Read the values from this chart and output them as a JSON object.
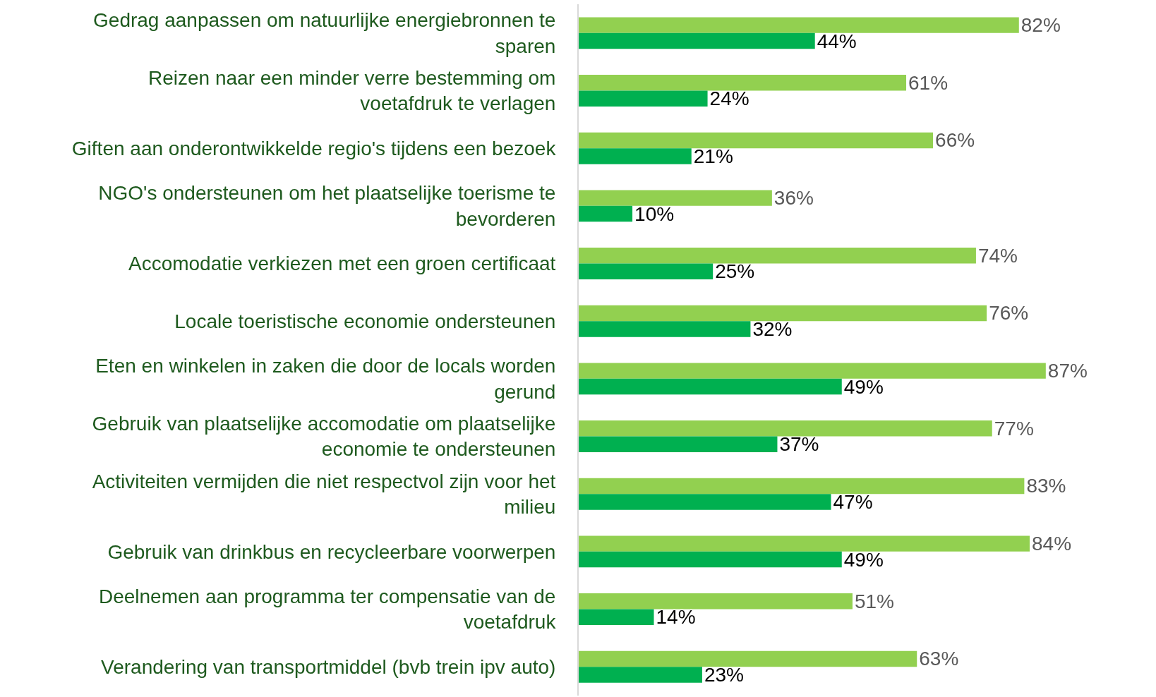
{
  "chart_data": {
    "type": "bar",
    "orientation": "horizontal",
    "categories": [
      "Gedrag aanpassen om natuurlijke energiebronnen te sparen",
      "Reizen naar een minder verre bestemming om voetafdruk te verlagen",
      "Giften aan onderontwikkelde regio's tijdens een bezoek",
      "NGO's ondersteunen om het plaatselijke toerisme te bevorderen",
      "Accomodatie verkiezen met een groen certificaat",
      "Locale toeristische economie ondersteunen",
      "Eten en winkelen in zaken die door de locals worden gerund",
      "Gebruik van plaatselijke accomodatie om plaatselijke economie te ondersteunen",
      "Activiteiten vermijden die niet respectvol zijn voor het milieu",
      "Gebruik van drinkbus en recycleerbare voorwerpen",
      "Deelnemen aan programma ter compensatie van de voetafdruk",
      "Verandering van transportmiddel (bvb trein ipv auto)"
    ],
    "series": [
      {
        "color": "#92d050",
        "values": [
          82,
          61,
          66,
          36,
          74,
          76,
          87,
          77,
          83,
          84,
          51,
          63
        ],
        "value_labels": [
          "82%",
          "61%",
          "66%",
          "36%",
          "74%",
          "76%",
          "87%",
          "77%",
          "83%",
          "84%",
          "51%",
          "63%"
        ]
      },
      {
        "color": "#00b050",
        "values": [
          44,
          24,
          21,
          10,
          25,
          32,
          49,
          37,
          47,
          49,
          14,
          23
        ],
        "value_labels": [
          "44%",
          "24%",
          "21%",
          "10%",
          "25%",
          "32%",
          "49%",
          "37%",
          "47%",
          "49%",
          "14%",
          "23%"
        ]
      }
    ],
    "grid": false
  }
}
